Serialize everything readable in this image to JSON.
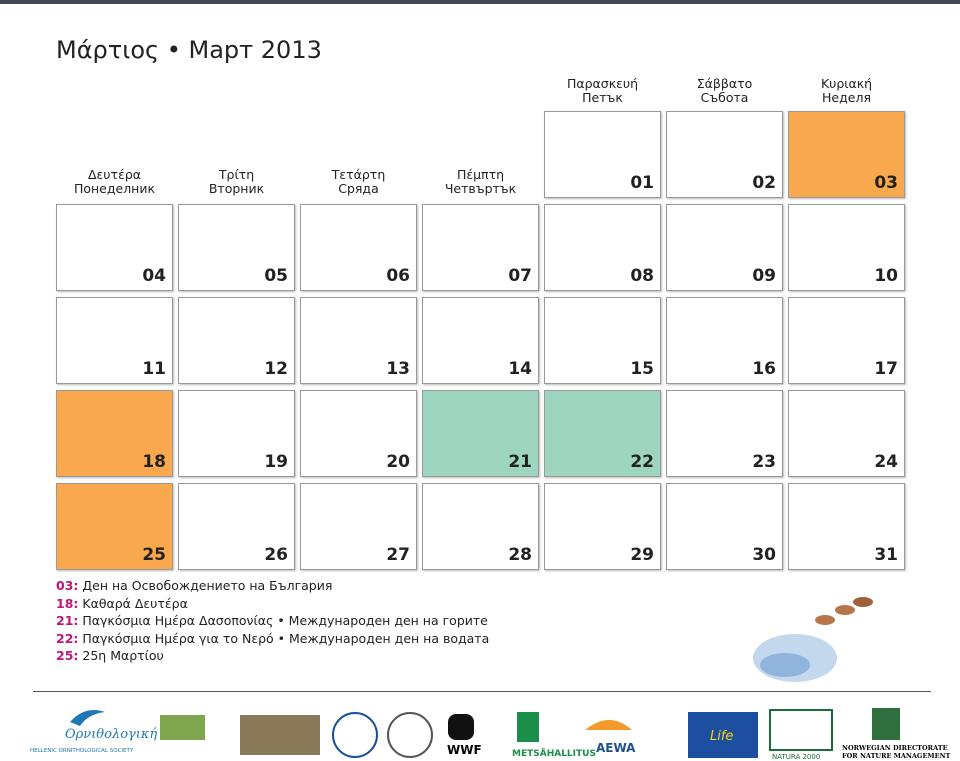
{
  "title": "Μάρτιος • Март 2013",
  "weekdays": [
    {
      "gr": "Δευτέρα",
      "bg": "Понеделник"
    },
    {
      "gr": "Τρίτη",
      "bg": "Вторник"
    },
    {
      "gr": "Τετάρτη",
      "bg": "Сряда"
    },
    {
      "gr": "Πέμπτη",
      "bg": "Четвъртък"
    },
    {
      "gr": "Παρασκευή",
      "bg": "Петък"
    },
    {
      "gr": "Σάββατο",
      "bg": "Събота"
    },
    {
      "gr": "Κυριακή",
      "bg": "Неделя"
    }
  ],
  "weeks": [
    [
      null,
      null,
      null,
      null,
      "01",
      "02",
      "03"
    ],
    [
      "04",
      "05",
      "06",
      "07",
      "08",
      "09",
      "10"
    ],
    [
      "11",
      "12",
      "13",
      "14",
      "15",
      "16",
      "17"
    ],
    [
      "18",
      "19",
      "20",
      "21",
      "22",
      "23",
      "24"
    ],
    [
      "25",
      "26",
      "27",
      "28",
      "29",
      "30",
      "31"
    ]
  ],
  "fills": [
    [
      null,
      null,
      null,
      null,
      "#ffffff",
      "#ffffff",
      "#f9a84d"
    ],
    [
      "#ffffff",
      "#ffffff",
      "#ffffff",
      "#ffffff",
      "#ffffff",
      "#ffffff",
      "#ffffff"
    ],
    [
      "#ffffff",
      "#ffffff",
      "#ffffff",
      "#ffffff",
      "#ffffff",
      "#ffffff",
      "#ffffff"
    ],
    [
      "#f9a84d",
      "#ffffff",
      "#ffffff",
      "#9ed5c0",
      "#9ed5c0",
      "#ffffff",
      "#ffffff"
    ],
    [
      "#f9a84d",
      "#ffffff",
      "#ffffff",
      "#ffffff",
      "#ffffff",
      "#ffffff",
      "#ffffff"
    ]
  ],
  "notes": [
    {
      "code": "03:",
      "text": "Ден на Освобождението на България"
    },
    {
      "code": "18:",
      "text": "Καθαρά Δευτέρα"
    },
    {
      "code": "21:",
      "text": "Παγκόσμια Ημέρα Δασοπονίας • Международен ден на горите"
    },
    {
      "code": "22:",
      "text": "Παγκόσμια Ημέρα για το Νερό • Международен ден на водата"
    },
    {
      "code": "25:",
      "text": "25η Μαρτίου"
    }
  ],
  "logos": {
    "hos": "Ορνιθολογική",
    "hos_en": "HELLENIC ORNITHOLOGICAL SOCIETY",
    "wwf": "WWF",
    "metsa": "METSÄHALLITUS",
    "aewa": "AEWA",
    "natura": "NATURA 2000",
    "life": "Life",
    "norway1": "NORWEGIAN DIRECTORATE",
    "norway2": "FOR NATURE MANAGEMENT"
  }
}
